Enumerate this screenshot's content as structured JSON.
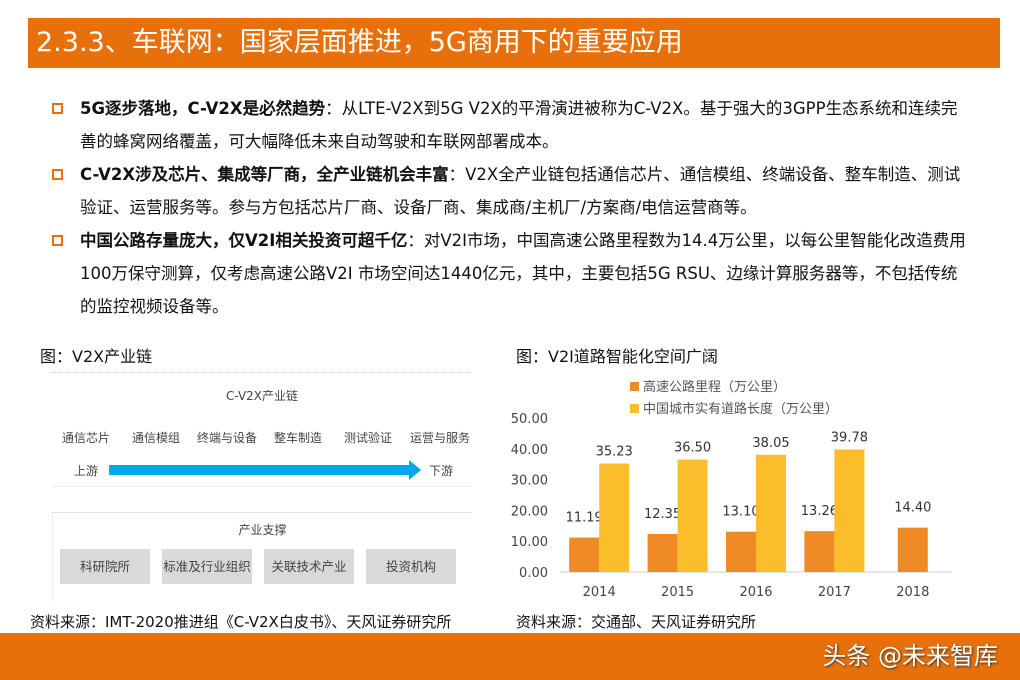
{
  "title": "2.3.3、车联网：国家层面推进，5G商用下的重要应用",
  "bullets": [
    {
      "bold": "5G逐步落地，C-V2X是必然趋势",
      "text": "：从LTE-V2X到5G V2X的平滑演进被称为C-V2X。基于强大的3GPP生态系统和连续完善的蜂窝网络覆盖，可大幅降低未来自动驾驶和车联网部署成本。"
    },
    {
      "bold": "C-V2X涉及芯片、集成等厂商，全产业链机会丰富",
      "text": "：V2X全产业链包括通信芯片、通信模组、终端设备、整车制造、测试验证、运营服务等。参与方包括芯片厂商、设备厂商、集成商/主机厂/方案商/电信运营商等。"
    },
    {
      "bold": "中国公路存量庞大，仅V2I相关投资可超千亿",
      "text": "：对V2I市场，中国高速公路里程数为14.4万公里，以每公里智能化改造费用100万保守测算，仅考虑高速公路V2I 市场空间达1440亿元，其中，主要包括5G RSU、边缘计算服务器等，不包括传统的监控视频设备等。"
    }
  ],
  "fig1": {
    "title": "图：V2X产业链",
    "source": "资料来源：IMT-2020推进组《C-V2X白皮书》、天风证券研究所",
    "chain_title": "C-V2X产业链",
    "steps": [
      "通信芯片",
      "通信模组",
      "终端与设备",
      "整车制造",
      "测试验证",
      "运营与服务"
    ],
    "upstream": "上游",
    "downstream": "下游",
    "support_title": "产业支撑",
    "support": [
      "科研院所",
      "标准及行业组织",
      "关联技术产业",
      "投资机构"
    ]
  },
  "fig2": {
    "title": "图：V2I道路智能化空间广阔",
    "source": "资料来源：交通部、天风证券研究所"
  },
  "chart_data": {
    "type": "bar",
    "categories": [
      "2014",
      "2015",
      "2016",
      "2017",
      "2018"
    ],
    "series": [
      {
        "name": "高速公路里程（万公里）",
        "color": "#f08a24",
        "values": [
          11.19,
          12.35,
          13.1,
          13.26,
          14.4
        ]
      },
      {
        "name": "中国城市实有道路长度（万公里）",
        "color": "#fbbd2c",
        "values": [
          35.23,
          36.5,
          38.05,
          39.78,
          null
        ]
      }
    ],
    "ylim": [
      0,
      50
    ],
    "yticks": [
      "0.00",
      "10.00",
      "20.00",
      "30.00",
      "40.00",
      "50.00"
    ],
    "legend": "top",
    "grid": false
  },
  "watermark": "头条 @未来智库",
  "colors": {
    "accent": "#e8700a"
  }
}
